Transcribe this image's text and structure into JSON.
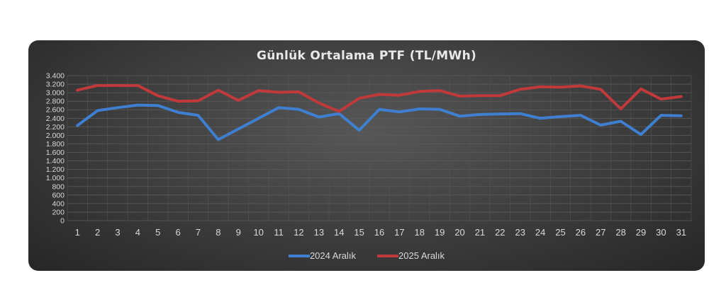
{
  "chart_data": {
    "type": "line",
    "title": "Günlük Ortalama PTF (TL/MWh)",
    "xlabel": "",
    "ylabel": "",
    "x": [
      1,
      2,
      3,
      4,
      5,
      6,
      7,
      8,
      9,
      10,
      11,
      12,
      13,
      14,
      15,
      16,
      17,
      18,
      19,
      20,
      21,
      22,
      23,
      24,
      25,
      26,
      27,
      28,
      29,
      30,
      31
    ],
    "ylim": [
      0,
      3400
    ],
    "y_ticks": [
      {
        "value": 0,
        "label": "0"
      },
      {
        "value": 200,
        "label": "200"
      },
      {
        "value": 400,
        "label": "400"
      },
      {
        "value": 600,
        "label": "600"
      },
      {
        "value": 800,
        "label": "800"
      },
      {
        "value": 1000,
        "label": "1.000"
      },
      {
        "value": 1200,
        "label": "1.200"
      },
      {
        "value": 1400,
        "label": "1.400"
      },
      {
        "value": 1600,
        "label": "1.600"
      },
      {
        "value": 1800,
        "label": "1.800"
      },
      {
        "value": 2000,
        "label": "2.000"
      },
      {
        "value": 2200,
        "label": "2.200"
      },
      {
        "value": 2400,
        "label": "2.400"
      },
      {
        "value": 2600,
        "label": "2.600"
      },
      {
        "value": 2800,
        "label": "2.800"
      },
      {
        "value": 3000,
        "label": "3.000"
      },
      {
        "value": 3200,
        "label": "3.200"
      },
      {
        "value": 3400,
        "label": "3.400"
      }
    ],
    "grid": true,
    "legend_position": "bottom",
    "series": [
      {
        "name": "2024 Aralık",
        "color": "#3f7fd0",
        "values": [
          2230,
          2580,
          2650,
          2710,
          2700,
          2540,
          2470,
          1900,
          2150,
          2400,
          2650,
          2610,
          2430,
          2510,
          2120,
          2610,
          2550,
          2620,
          2610,
          2450,
          2490,
          2500,
          2510,
          2400,
          2440,
          2470,
          2240,
          2330,
          2020,
          2470,
          2460
        ]
      },
      {
        "name": "2025 Aralık",
        "color": "#c0393b",
        "values": [
          3060,
          3170,
          3170,
          3170,
          2930,
          2800,
          2810,
          3060,
          2820,
          3050,
          3010,
          3020,
          2760,
          2560,
          2870,
          2960,
          2940,
          3030,
          3050,
          2920,
          2930,
          2930,
          3080,
          3140,
          3130,
          3160,
          3080,
          2620,
          3090,
          2850,
          2910
        ]
      }
    ]
  },
  "colors": {
    "background_outer": "#ffffff",
    "card": "#3f3f3f",
    "grid": "#5a5a5a",
    "text": "#d9d9d9"
  }
}
